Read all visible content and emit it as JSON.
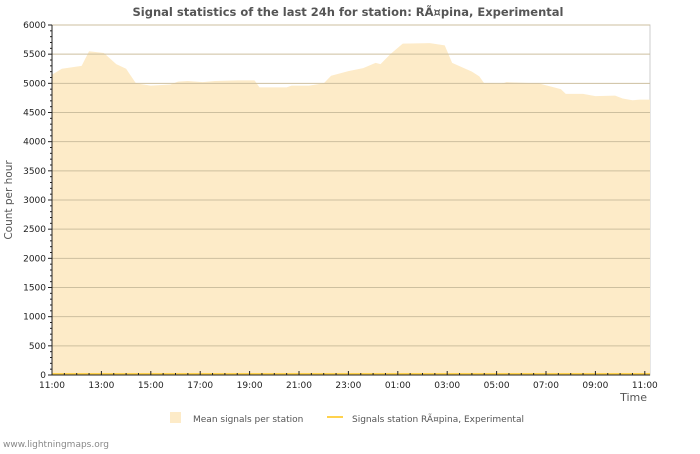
{
  "chart_data": {
    "type": "area",
    "title": "Signal statistics of the last 24h for station: RÃ¤pina, Experimental",
    "xlabel": "Time",
    "ylabel": "Count per hour",
    "ylim": [
      0,
      6000
    ],
    "xlim_hours": [
      0,
      24.3
    ],
    "yticks": [
      "0",
      "500",
      "1000",
      "1500",
      "2000",
      "2500",
      "3000",
      "3500",
      "4000",
      "4500",
      "5000",
      "5500",
      "6000"
    ],
    "xticks": [
      "11:00",
      "13:00",
      "15:00",
      "17:00",
      "19:00",
      "21:00",
      "23:00",
      "01:00",
      "03:00",
      "05:00",
      "07:00",
      "09:00",
      "11:00"
    ],
    "grid": true,
    "legend_placement": "bottom",
    "series": [
      {
        "name": "Mean signals per station",
        "color": "#fdebc8",
        "type": "area",
        "x": [
          0,
          0.4,
          1.2,
          1.5,
          2.1,
          2.6,
          3,
          3.4,
          3.7,
          4,
          4.8,
          5.1,
          5.5,
          6.1,
          6.6,
          7.5,
          8.2,
          8.4,
          9.5,
          9.7,
          10.4,
          11,
          11.3,
          12,
          12.6,
          13.1,
          13.3,
          13.7,
          14.2,
          15.3,
          15.9,
          16.2,
          17,
          17.3,
          17.5,
          18.2,
          18.4,
          19.7,
          20.6,
          20.8,
          21.5,
          22,
          22.8,
          23.1,
          23.5,
          23.8,
          24.3
        ],
        "values": [
          5150,
          5250,
          5300,
          5550,
          5520,
          5330,
          5250,
          5000,
          4980,
          4960,
          4980,
          5030,
          5040,
          5020,
          5040,
          5050,
          5050,
          4930,
          4930,
          4960,
          4960,
          5000,
          5130,
          5210,
          5260,
          5350,
          5330,
          5500,
          5680,
          5690,
          5650,
          5350,
          5200,
          5120,
          5000,
          4990,
          5020,
          5000,
          4900,
          4820,
          4820,
          4780,
          4790,
          4740,
          4710,
          4720,
          4720
        ]
      },
      {
        "name": "Signals station RÃ¤pina, Experimental",
        "color": "#ffd24d",
        "type": "line",
        "x": [
          0,
          24.3
        ],
        "values": [
          0,
          0
        ]
      }
    ]
  },
  "footer": "www.lightningmaps.org"
}
